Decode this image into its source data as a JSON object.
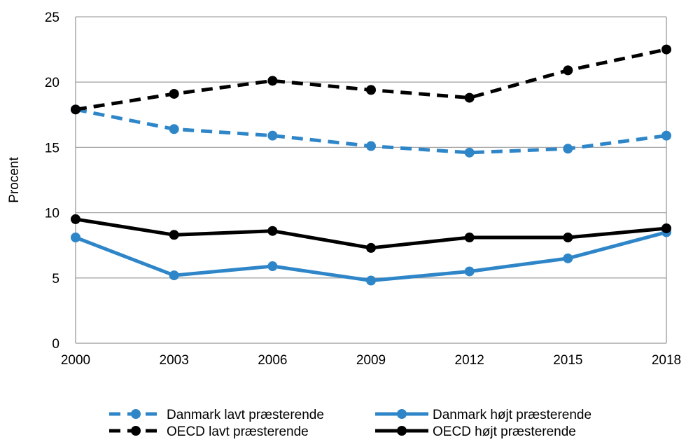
{
  "chart_data": {
    "type": "line",
    "x": [
      "2000",
      "2003",
      "2006",
      "2009",
      "2012",
      "2015",
      "2018"
    ],
    "ylabel": "Procent",
    "xlabel": "",
    "ylim": [
      0,
      25
    ],
    "yticks": [
      0,
      5,
      10,
      15,
      20,
      25
    ],
    "grid": true,
    "legend_position": "bottom",
    "series": [
      {
        "name": "Danmark lavt præsterende",
        "color": "#2E86C8",
        "dashed": true,
        "values": [
          17.9,
          16.4,
          15.9,
          15.1,
          14.6,
          14.9,
          15.9
        ]
      },
      {
        "name": "Danmark højt præsterende",
        "color": "#2E86C8",
        "dashed": false,
        "values": [
          8.1,
          5.2,
          5.9,
          4.8,
          5.5,
          6.5,
          8.5
        ]
      },
      {
        "name": "OECD lavt præsterende",
        "color": "#000000",
        "dashed": true,
        "values": [
          17.9,
          19.1,
          20.1,
          19.4,
          18.8,
          20.9,
          22.5
        ]
      },
      {
        "name": "OECD højt præsterende",
        "color": "#000000",
        "dashed": false,
        "values": [
          9.5,
          8.3,
          8.6,
          7.3,
          8.1,
          8.1,
          8.8
        ]
      }
    ]
  }
}
